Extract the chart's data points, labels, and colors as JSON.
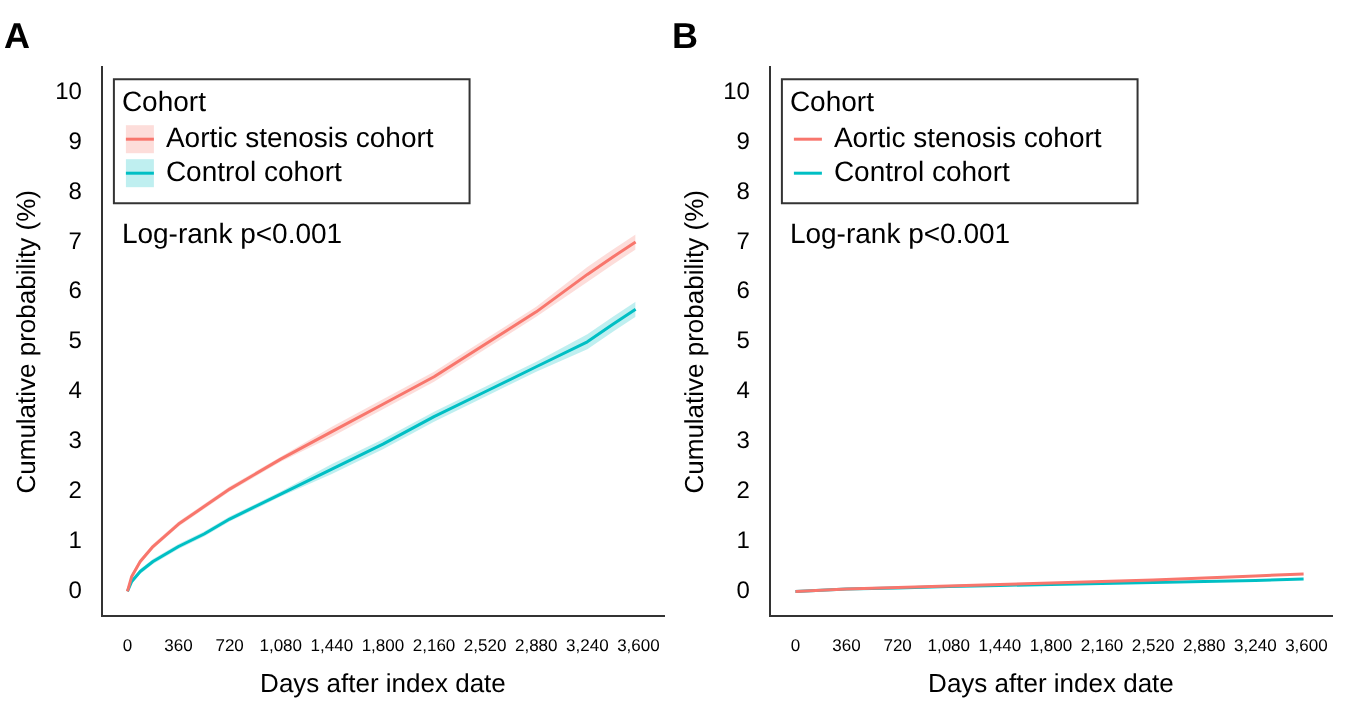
{
  "chart_data": [
    {
      "type": "line",
      "title": "A",
      "xlabel": "Days after index date",
      "ylabel": "Cumulative probability (%)",
      "legend_title": "Cohort",
      "legend": "top left",
      "grid": false,
      "marker": "none",
      "line_style": "solid",
      "annotations": [
        "Log-rank p<0.001"
      ],
      "x": [
        0,
        30,
        90,
        180,
        360,
        540,
        720,
        1080,
        1440,
        1800,
        2160,
        2520,
        2880,
        3240,
        3420,
        3580
      ],
      "xlim": [
        -180,
        3780
      ],
      "xticks": [
        {
          "value": 0,
          "label": "0"
        },
        {
          "value": 360,
          "label": "360"
        },
        {
          "value": 720,
          "label": "720"
        },
        {
          "value": 1080,
          "label": "1,080"
        },
        {
          "value": 1440,
          "label": "1,440"
        },
        {
          "value": 1800,
          "label": "1,800"
        },
        {
          "value": 2160,
          "label": "2,160"
        },
        {
          "value": 2520,
          "label": "2,520"
        },
        {
          "value": 2880,
          "label": "2,880"
        },
        {
          "value": 3240,
          "label": "3,240"
        },
        {
          "value": 3600,
          "label": "3,600"
        }
      ],
      "ylim": [
        -0.5,
        10.5
      ],
      "yticks": [
        0,
        1,
        2,
        3,
        4,
        5,
        6,
        7,
        8,
        9,
        10
      ],
      "series": [
        {
          "name": "Aortic stenosis cohort",
          "color": "#f8766d",
          "values": [
            0,
            0.3,
            0.6,
            0.9,
            1.35,
            1.7,
            2.05,
            2.65,
            3.2,
            3.75,
            4.3,
            4.95,
            5.6,
            6.35,
            6.7,
            7.0
          ],
          "lower": [
            0,
            0.25,
            0.55,
            0.85,
            1.3,
            1.65,
            2.0,
            2.6,
            3.1,
            3.65,
            4.2,
            4.85,
            5.5,
            6.2,
            6.55,
            6.85
          ],
          "upper": [
            0,
            0.35,
            0.65,
            0.95,
            1.4,
            1.75,
            2.1,
            2.7,
            3.3,
            3.85,
            4.4,
            5.05,
            5.7,
            6.5,
            6.85,
            7.15
          ]
        },
        {
          "name": "Control cohort",
          "color": "#00bfc4",
          "values": [
            0,
            0.2,
            0.4,
            0.6,
            0.9,
            1.15,
            1.45,
            1.95,
            2.45,
            2.95,
            3.5,
            4.0,
            4.5,
            5.0,
            5.35,
            5.65
          ],
          "lower": [
            0,
            0.15,
            0.35,
            0.55,
            0.85,
            1.1,
            1.4,
            1.9,
            2.35,
            2.85,
            3.4,
            3.9,
            4.4,
            4.85,
            5.2,
            5.5
          ],
          "upper": [
            0,
            0.25,
            0.45,
            0.65,
            0.95,
            1.2,
            1.5,
            2.0,
            2.55,
            3.05,
            3.6,
            4.1,
            4.6,
            5.15,
            5.5,
            5.8
          ]
        }
      ]
    },
    {
      "type": "line",
      "title": "B",
      "xlabel": "Days after index date",
      "ylabel": "Cumulative probability (%)",
      "legend_title": "Cohort",
      "legend": "top left",
      "grid": false,
      "marker": "none",
      "line_style": "solid",
      "annotations": [
        "Log-rank p<0.001"
      ],
      "x": [
        0,
        360,
        720,
        1080,
        1440,
        1800,
        2160,
        2520,
        2880,
        3240,
        3580
      ],
      "xlim": [
        -180,
        3780
      ],
      "xticks": [
        {
          "value": 0,
          "label": "0"
        },
        {
          "value": 360,
          "label": "360"
        },
        {
          "value": 720,
          "label": "720"
        },
        {
          "value": 1080,
          "label": "1,080"
        },
        {
          "value": 1440,
          "label": "1,440"
        },
        {
          "value": 1800,
          "label": "1,800"
        },
        {
          "value": 2160,
          "label": "2,160"
        },
        {
          "value": 2520,
          "label": "2,520"
        },
        {
          "value": 2880,
          "label": "2,880"
        },
        {
          "value": 3240,
          "label": "3,240"
        },
        {
          "value": 3600,
          "label": "3,600"
        }
      ],
      "ylim": [
        -0.5,
        10.5
      ],
      "yticks": [
        0,
        1,
        2,
        3,
        4,
        5,
        6,
        7,
        8,
        9,
        10
      ],
      "series": [
        {
          "name": "Aortic stenosis cohort",
          "color": "#f8766d",
          "values": [
            0,
            0.05,
            0.08,
            0.11,
            0.14,
            0.17,
            0.2,
            0.23,
            0.27,
            0.31,
            0.35
          ]
        },
        {
          "name": "Control cohort",
          "color": "#00bfc4",
          "values": [
            0,
            0.05,
            0.07,
            0.1,
            0.12,
            0.14,
            0.16,
            0.18,
            0.2,
            0.22,
            0.25
          ]
        }
      ]
    }
  ]
}
